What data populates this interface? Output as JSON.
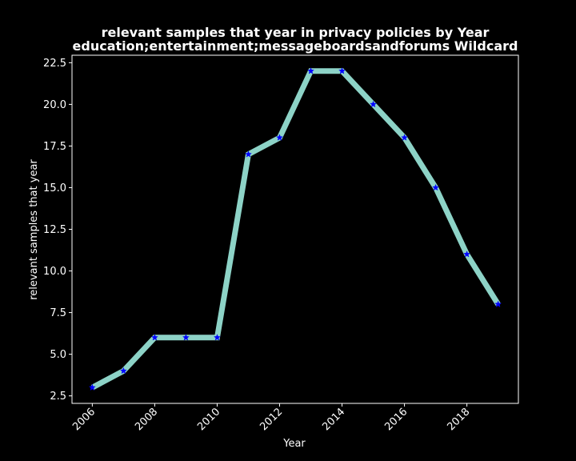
{
  "chart_data": {
    "type": "line",
    "title_line1": "relevant samples that year in privacy policies by Year",
    "title_line2": "education;entertainment;messageboardsandforums Wildcard",
    "xlabel": "Year",
    "ylabel": "relevant samples that year",
    "x": [
      2006,
      2007,
      2008,
      2009,
      2010,
      2011,
      2012,
      2013,
      2014,
      2015,
      2016,
      2017,
      2018,
      2019
    ],
    "values": [
      3,
      4,
      6,
      6,
      6,
      17,
      18,
      22,
      22,
      20,
      18,
      15,
      11,
      8
    ],
    "xlim": [
      2005.35,
      2019.65
    ],
    "ylim": [
      2.05,
      22.95
    ],
    "xticks": [
      2006,
      2008,
      2010,
      2012,
      2014,
      2016,
      2018
    ],
    "yticks": [
      2.5,
      5.0,
      7.5,
      10.0,
      12.5,
      15.0,
      17.5,
      20.0,
      22.5
    ],
    "ytick_labels": [
      "2.5",
      "5.0",
      "7.5",
      "10.0",
      "12.5",
      "15.0",
      "17.5",
      "20.0",
      "22.5"
    ],
    "grid": false,
    "line_color": "#8dd3c7",
    "marker_color": "#0000ff",
    "marker": "star",
    "background": "#000000",
    "foreground": "#ffffff"
  }
}
